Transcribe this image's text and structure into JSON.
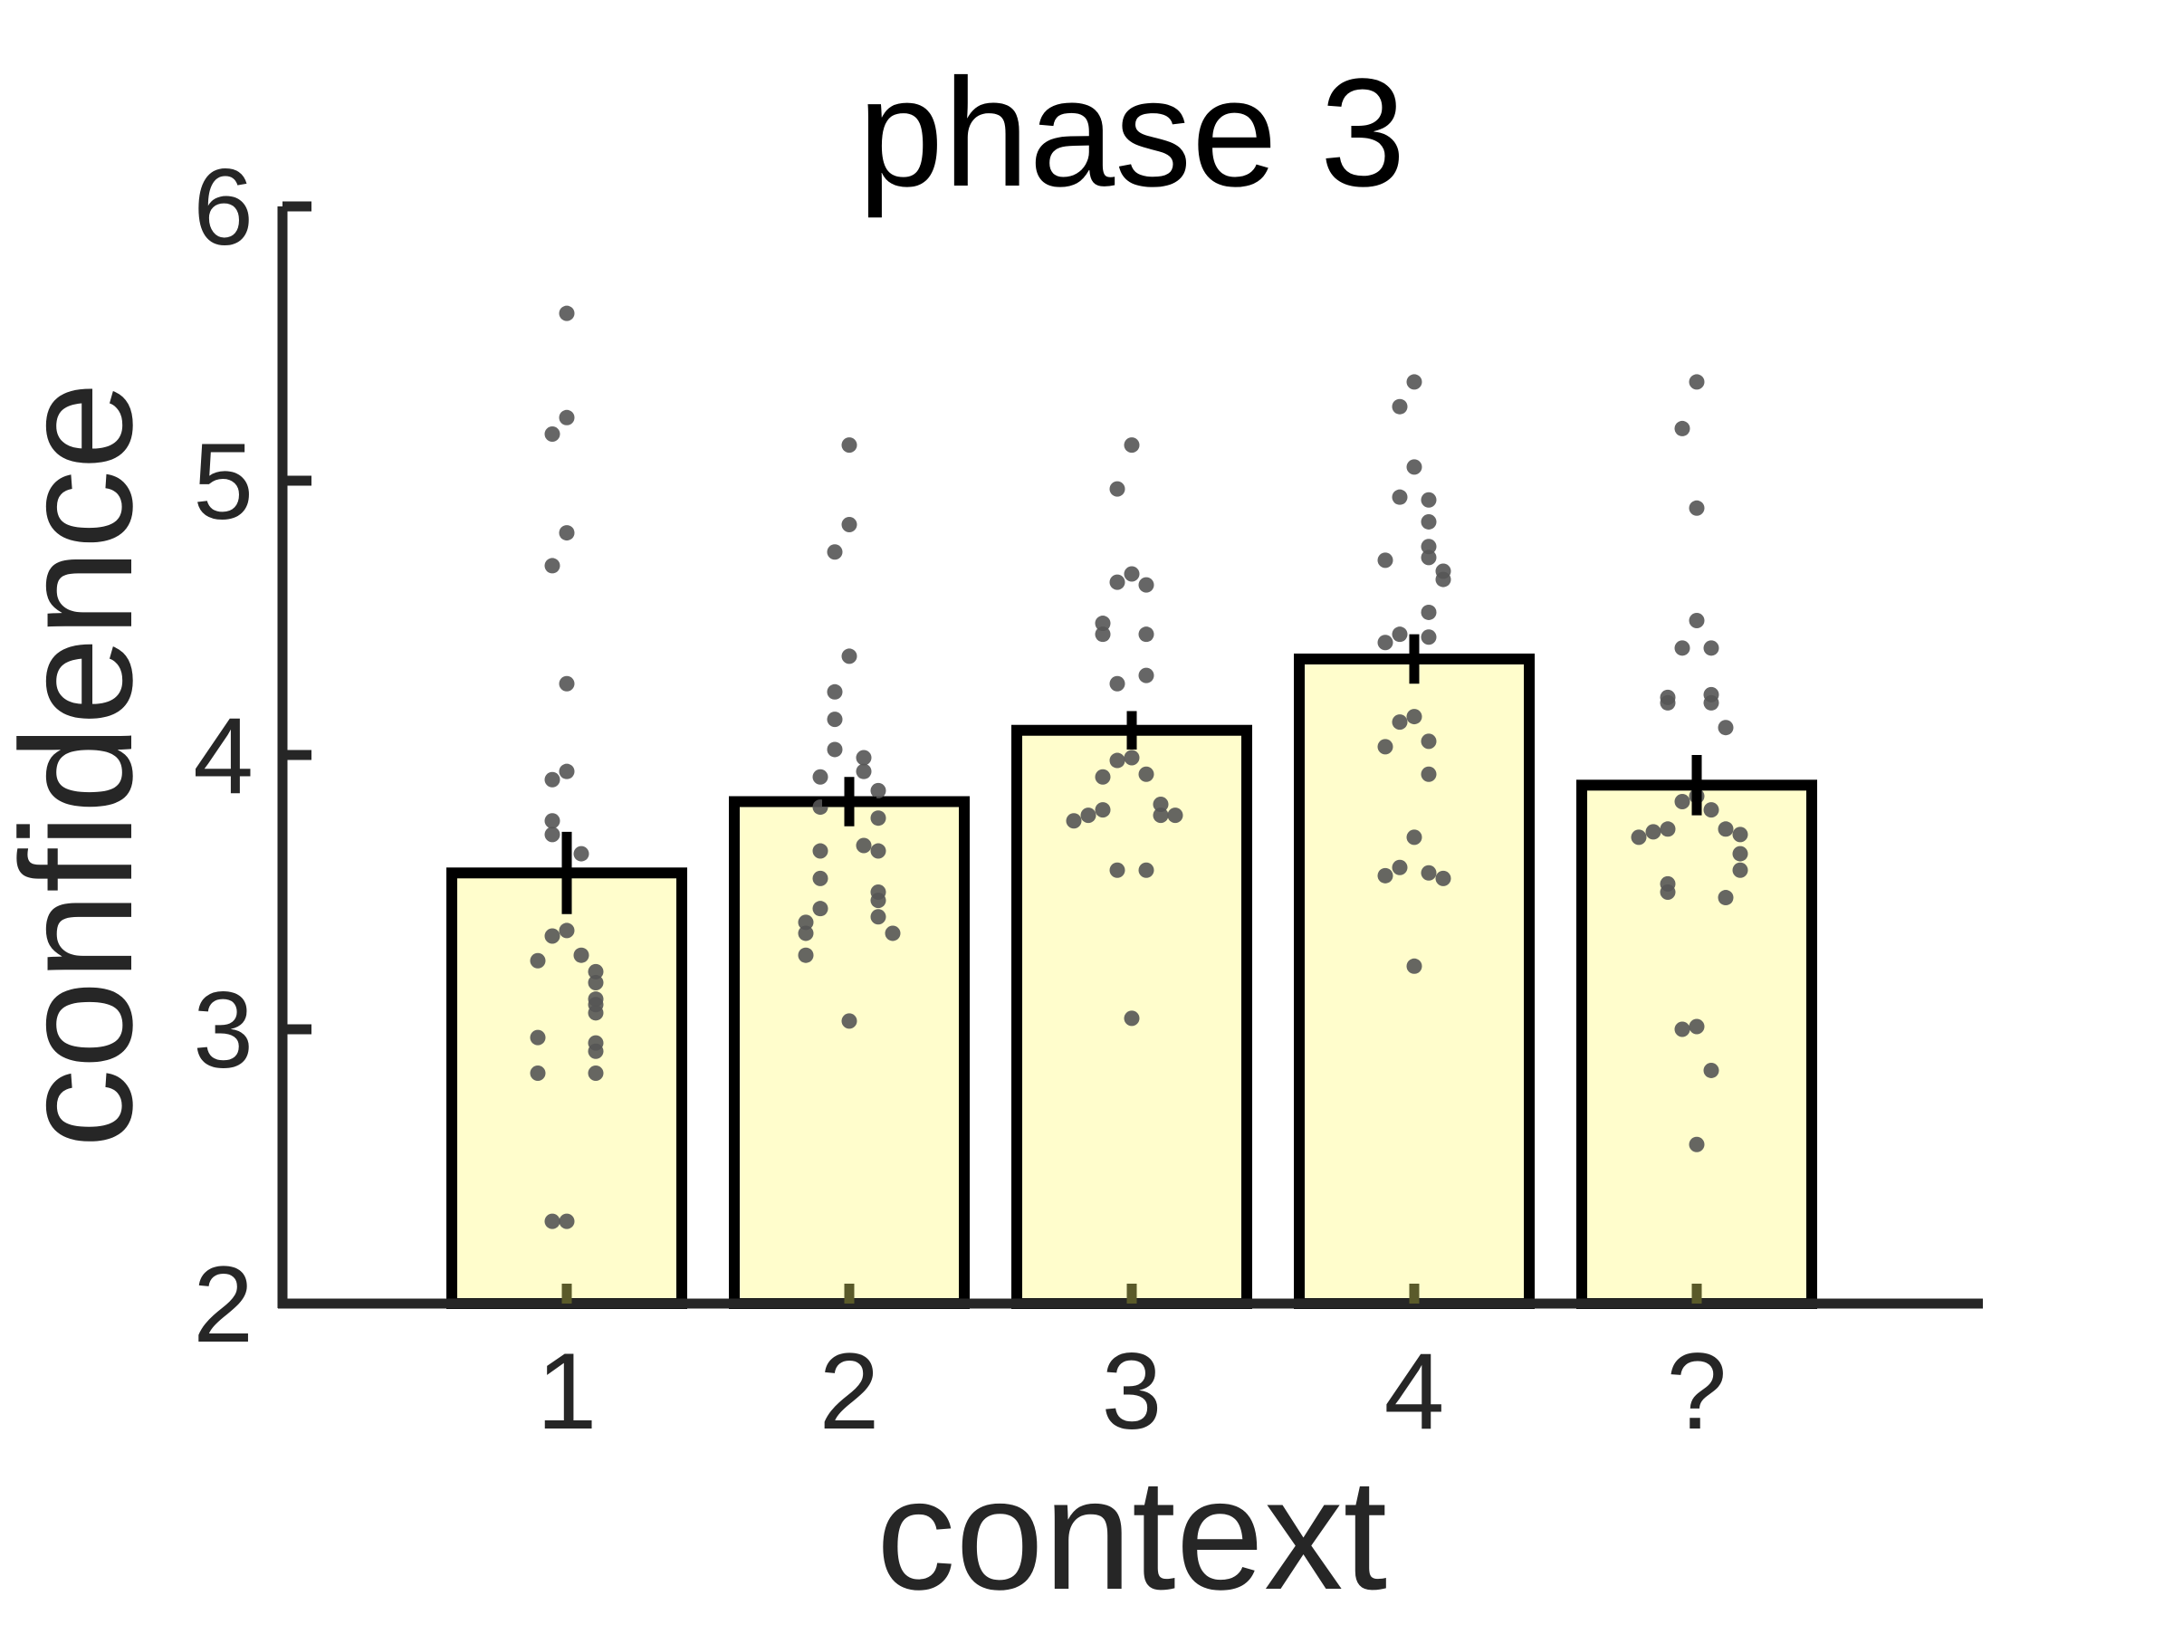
{
  "chart_data": {
    "type": "bar",
    "title": "phase 3",
    "xlabel": "context",
    "ylabel": "confidence",
    "categories": [
      "1",
      "2",
      "3",
      "4",
      "?"
    ],
    "values": [
      3.57,
      3.83,
      4.09,
      4.35,
      3.89
    ],
    "errors": [
      0.15,
      0.09,
      0.07,
      0.09,
      0.11
    ],
    "ylim": [
      2,
      6
    ],
    "yticks": [
      2,
      3,
      4,
      5,
      6
    ],
    "bar_color": "#FFFDCC",
    "bar_edge_color": "#000000",
    "dot_color": "#555555",
    "axis_color": "#262626",
    "points": [
      [
        5.61,
        5.23,
        5.17,
        4.81,
        4.69,
        4.26,
        3.94,
        3.91,
        3.76,
        3.71,
        3.64,
        3.36,
        3.34,
        3.27,
        3.25,
        3.21,
        3.17,
        3.11,
        3.09,
        3.06,
        2.97,
        2.95,
        2.92,
        2.84,
        2.84,
        2.3,
        2.3
      ],
      [
        5.13,
        4.84,
        4.74,
        4.36,
        4.23,
        4.13,
        4.02,
        3.99,
        3.94,
        3.92,
        3.87,
        3.81,
        3.77,
        3.67,
        3.65,
        3.65,
        3.55,
        3.5,
        3.47,
        3.44,
        3.41,
        3.39,
        3.35,
        3.35,
        3.27,
        3.03
      ],
      [
        5.13,
        4.97,
        4.66,
        4.63,
        4.62,
        4.48,
        4.44,
        4.44,
        4.29,
        4.26,
        3.99,
        3.98,
        3.93,
        3.92,
        3.82,
        3.8,
        3.78,
        3.78,
        3.78,
        3.76,
        3.58,
        3.58,
        3.04
      ],
      [
        5.36,
        5.27,
        5.05,
        4.94,
        4.93,
        4.85,
        4.76,
        4.72,
        4.71,
        4.67,
        4.64,
        4.52,
        4.44,
        4.43,
        4.41,
        4.14,
        4.12,
        4.05,
        4.03,
        3.93,
        3.7,
        3.59,
        3.57,
        3.56,
        3.55,
        3.23
      ],
      [
        5.36,
        5.19,
        4.9,
        4.49,
        4.39,
        4.39,
        4.22,
        4.21,
        4.19,
        4.19,
        4.1,
        3.85,
        3.83,
        3.8,
        3.73,
        3.73,
        3.72,
        3.71,
        3.7,
        3.64,
        3.58,
        3.53,
        3.5,
        3.48,
        3.01,
        3.0,
        2.85,
        2.58
      ]
    ]
  }
}
